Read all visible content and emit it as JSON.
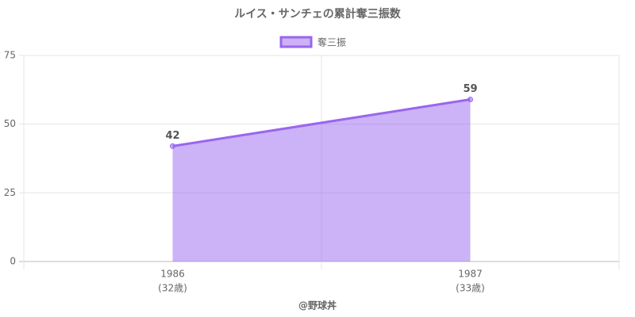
{
  "chart_data": {
    "type": "area",
    "title": "ルイス・サンチェの累計奪三振数",
    "categories": [
      "1986",
      "1987"
    ],
    "category_sublabels": [
      "(32歳)",
      "(33歳)"
    ],
    "series": [
      {
        "name": "奪三振",
        "color": "#9966ee",
        "values": [
          42,
          59
        ]
      }
    ],
    "ylim": [
      0,
      75
    ],
    "yticks": [
      0,
      25,
      50,
      75
    ],
    "grid": true,
    "legend": "top",
    "credit": "@野球丼"
  }
}
